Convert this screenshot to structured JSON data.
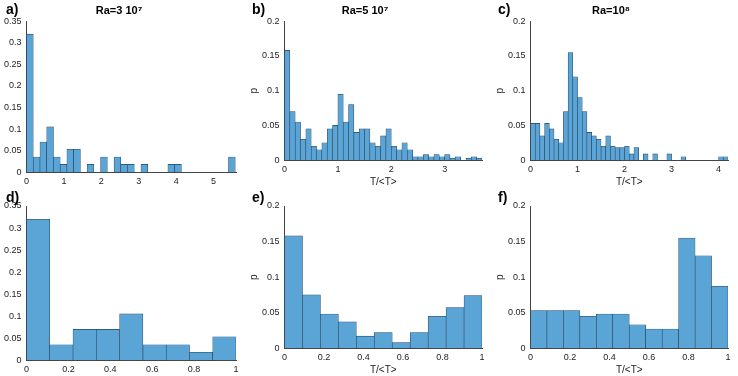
{
  "chart_data": [
    {
      "type": "histogram",
      "label": "a)",
      "title": "Ra=3 10⁷",
      "color": "#5ba4d6",
      "grid": false,
      "bins": [
        0,
        0.18,
        0.36,
        0.54,
        0.72,
        0.9,
        1.08,
        1.26,
        1.44,
        1.62,
        1.8,
        1.98,
        2.16,
        2.34,
        2.52,
        2.7,
        2.88,
        3.06,
        3.24,
        3.42,
        3.6,
        3.78,
        3.96,
        4.14,
        4.32,
        4.5,
        4.68,
        4.86,
        5.04,
        5.22,
        5.4,
        5.58
      ],
      "counts": [
        0.32,
        0.035,
        0.07,
        0.105,
        0.035,
        0.018,
        0.053,
        0.053,
        0,
        0.018,
        0,
        0.035,
        0,
        0.035,
        0.018,
        0.018,
        0,
        0.018,
        0,
        0,
        0,
        0.018,
        0.018,
        0,
        0,
        0,
        0,
        0,
        0,
        0,
        0.035
      ],
      "xlim": [
        0,
        5.6
      ],
      "xticks": [
        0,
        1,
        2,
        3,
        4,
        5
      ],
      "ylim": [
        0,
        0.35
      ],
      "yticks": [
        0,
        0.05,
        0.1,
        0.15,
        0.2,
        0.25,
        0.3,
        0.35
      ]
    },
    {
      "type": "histogram",
      "label": "b)",
      "title": "Ra=5 10⁷",
      "color": "#5ba4d6",
      "grid": false,
      "x_label": "T/<T>",
      "y_label": "p",
      "bins": [
        0,
        0.1,
        0.2,
        0.3,
        0.4,
        0.5,
        0.6,
        0.7,
        0.8,
        0.9,
        1,
        1.1,
        1.2,
        1.3,
        1.4,
        1.5,
        1.6,
        1.7,
        1.8,
        1.9,
        2,
        2.1,
        2.2,
        2.3,
        2.4,
        2.5,
        2.6,
        2.7,
        2.8,
        2.9,
        3,
        3.1,
        3.2,
        3.3,
        3.4,
        3.5,
        3.6,
        3.7
      ],
      "counts": [
        0.158,
        0.07,
        0.055,
        0.03,
        0.045,
        0.02,
        0.015,
        0.025,
        0.045,
        0.05,
        0.095,
        0.055,
        0.08,
        0.04,
        0.045,
        0.045,
        0.025,
        0.02,
        0.035,
        0.045,
        0.02,
        0.015,
        0.025,
        0.015,
        0.005,
        0.005,
        0.008,
        0.005,
        0.008,
        0.005,
        0.008,
        0.003,
        0.005,
        0,
        0.003,
        0.005,
        0.003
      ],
      "xlim": [
        0,
        3.7
      ],
      "xticks": [
        0,
        1,
        2,
        3
      ],
      "ylim": [
        0,
        0.2
      ],
      "yticks": [
        0,
        0.05,
        0.1,
        0.15,
        0.2
      ]
    },
    {
      "type": "histogram",
      "label": "c)",
      "title": "Ra=10⁸",
      "color": "#5ba4d6",
      "grid": false,
      "x_label": "T/<T>",
      "y_label": "p",
      "bins": [
        0,
        0.1,
        0.2,
        0.3,
        0.4,
        0.5,
        0.6,
        0.7,
        0.8,
        0.9,
        1,
        1.1,
        1.2,
        1.3,
        1.4,
        1.5,
        1.6,
        1.7,
        1.8,
        1.9,
        2,
        2.1,
        2.2,
        2.3,
        2.4,
        2.5,
        2.6,
        2.7,
        2.8,
        2.9,
        3,
        3.1,
        3.2,
        3.3,
        3.4,
        3.5,
        3.6,
        3.7,
        3.8,
        3.9,
        4,
        4.1,
        4.2
      ],
      "counts": [
        0.053,
        0.053,
        0.035,
        0.053,
        0.045,
        0.03,
        0.025,
        0.07,
        0.155,
        0.12,
        0.09,
        0.07,
        0.04,
        0.035,
        0.03,
        0.02,
        0.035,
        0.02,
        0.018,
        0.018,
        0.02,
        0.009,
        0.018,
        0,
        0.009,
        0,
        0.009,
        0,
        0,
        0.009,
        0,
        0,
        0.005,
        0,
        0,
        0,
        0,
        0,
        0,
        0,
        0.005,
        0.005
      ],
      "xlim": [
        0,
        4.2
      ],
      "xticks": [
        0,
        1,
        2,
        3,
        4
      ],
      "ylim": [
        0,
        0.2
      ],
      "yticks": [
        0,
        0.05,
        0.1,
        0.15,
        0.2
      ]
    },
    {
      "type": "histogram",
      "label": "d)",
      "color": "#5ba4d6",
      "grid": false,
      "bins": [
        0,
        0.111,
        0.222,
        0.333,
        0.444,
        0.556,
        0.667,
        0.778,
        0.889,
        1
      ],
      "counts": [
        0.32,
        0.035,
        0.07,
        0.07,
        0.105,
        0.035,
        0.035,
        0.018,
        0.053
      ],
      "xlim": [
        0,
        1
      ],
      "xticks": [
        0,
        0.2,
        0.4,
        0.6,
        0.8,
        1
      ],
      "ylim": [
        0,
        0.35
      ],
      "yticks": [
        0,
        0.05,
        0.1,
        0.15,
        0.2,
        0.25,
        0.3,
        0.35
      ]
    },
    {
      "type": "histogram",
      "label": "e)",
      "color": "#5ba4d6",
      "grid": false,
      "x_label": "T/<T>",
      "y_label": "p",
      "bins": [
        0,
        0.0909,
        0.1818,
        0.2727,
        0.3636,
        0.4545,
        0.5455,
        0.6364,
        0.7273,
        0.8182,
        0.9091,
        1
      ],
      "counts": [
        0.158,
        0.075,
        0.048,
        0.037,
        0.017,
        0.022,
        0.008,
        0.022,
        0.045,
        0.057,
        0.074
      ],
      "xlim": [
        0,
        1
      ],
      "xticks": [
        0,
        0.2,
        0.4,
        0.6,
        0.8,
        1
      ],
      "ylim": [
        0,
        0.2
      ],
      "yticks": [
        0,
        0.05,
        0.1,
        0.15,
        0.2
      ]
    },
    {
      "type": "histogram",
      "label": "f)",
      "color": "#5ba4d6",
      "grid": false,
      "x_label": "T/<T>",
      "y_label": "p",
      "bins": [
        0,
        0.0833,
        0.1667,
        0.25,
        0.3333,
        0.4167,
        0.5,
        0.5833,
        0.6667,
        0.75,
        0.8333,
        0.9167,
        1
      ],
      "counts": [
        0.053,
        0.053,
        0.053,
        0.045,
        0.048,
        0.048,
        0.033,
        0.027,
        0.027,
        0.155,
        0.13,
        0.087
      ],
      "xlim": [
        0,
        1
      ],
      "xticks": [
        0,
        0.2,
        0.4,
        0.6,
        0.8,
        1
      ],
      "ylim": [
        0,
        0.2
      ],
      "yticks": [
        0,
        0.05,
        0.1,
        0.15,
        0.2
      ]
    }
  ]
}
